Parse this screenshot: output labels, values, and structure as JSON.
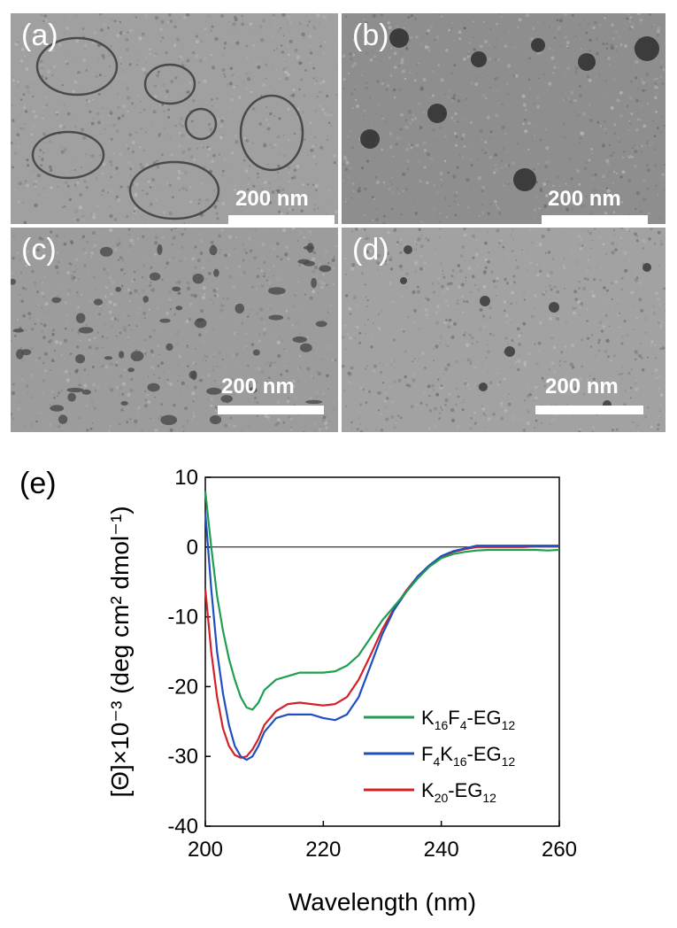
{
  "micrographs": [
    {
      "label": "(a)",
      "scale_text": "200 nm",
      "tone": "#a0a0a0"
    },
    {
      "label": "(b)",
      "scale_text": "200 nm",
      "tone": "#8e8e8e"
    },
    {
      "label": "(c)",
      "scale_text": "200 nm",
      "tone": "#9c9c9c"
    },
    {
      "label": "(d)",
      "scale_text": "200 nm",
      "tone": "#a2a2a2"
    }
  ],
  "chart_label": "(e)",
  "chart_data": {
    "type": "line",
    "xlabel": "Wavelength (nm)",
    "ylabel": "[Θ]×10⁻³ (deg cm² dmol⁻¹)",
    "xlim": [
      200,
      260
    ],
    "ylim": [
      -40,
      10
    ],
    "xticks": [
      200,
      220,
      240,
      260
    ],
    "yticks": [
      10,
      0,
      -10,
      -20,
      -30,
      -40
    ],
    "grid": false,
    "legend_position": "bottom-right",
    "series": [
      {
        "name": "K16F4-EG12",
        "name_parts": [
          [
            "K",
            false
          ],
          [
            "16",
            true
          ],
          [
            "F",
            false
          ],
          [
            "4",
            true
          ],
          [
            "-EG",
            false
          ],
          [
            "12",
            true
          ]
        ],
        "color": "#1f9e4f",
        "x": [
          200,
          201,
          202,
          203,
          204,
          205,
          206,
          207,
          208,
          209,
          210,
          212,
          214,
          216,
          218,
          220,
          222,
          224,
          226,
          228,
          230,
          232,
          234,
          236,
          238,
          240,
          242,
          244,
          246,
          248,
          250,
          252,
          254,
          256,
          258,
          260
        ],
        "y": [
          8,
          0,
          -7,
          -12,
          -16,
          -19,
          -21.5,
          -23,
          -23.3,
          -22.3,
          -20.5,
          -19,
          -18.5,
          -18,
          -18,
          -18,
          -17.8,
          -17,
          -15.5,
          -13,
          -10.5,
          -8.5,
          -6.5,
          -4.5,
          -2.8,
          -1.6,
          -1,
          -0.7,
          -0.5,
          -0.4,
          -0.4,
          -0.4,
          -0.4,
          -0.4,
          -0.5,
          -0.4
        ]
      },
      {
        "name": "F4K16-EG12",
        "name_parts": [
          [
            "F",
            false
          ],
          [
            "4",
            true
          ],
          [
            "K",
            false
          ],
          [
            "16",
            true
          ],
          [
            "-EG",
            false
          ],
          [
            "12",
            true
          ]
        ],
        "color": "#1f4fbf",
        "x": [
          200,
          201,
          202,
          203,
          204,
          205,
          206,
          207,
          208,
          209,
          210,
          212,
          214,
          216,
          218,
          220,
          222,
          224,
          226,
          228,
          230,
          232,
          234,
          236,
          238,
          240,
          242,
          244,
          246,
          248,
          250,
          252,
          254,
          256,
          258,
          260
        ],
        "y": [
          5,
          -6,
          -15,
          -21,
          -25.5,
          -28.5,
          -30,
          -30.5,
          -30,
          -28.5,
          -26.5,
          -24.5,
          -24,
          -24,
          -24,
          -24.5,
          -24.8,
          -24,
          -21.5,
          -17,
          -12.5,
          -9,
          -6.5,
          -4.2,
          -2.6,
          -1.3,
          -0.6,
          -0.2,
          0.2,
          0.2,
          0.2,
          0.2,
          0.2,
          0.2,
          0.2,
          0.2
        ]
      },
      {
        "name": "K20-EG12",
        "name_parts": [
          [
            "K",
            false
          ],
          [
            "20",
            true
          ],
          [
            "-EG",
            false
          ],
          [
            "12",
            true
          ]
        ],
        "color": "#d42027",
        "x": [
          200,
          201,
          202,
          203,
          204,
          205,
          206,
          207,
          208,
          209,
          210,
          212,
          214,
          216,
          218,
          220,
          222,
          224,
          226,
          228,
          230,
          232,
          234,
          236,
          238,
          240,
          242,
          244,
          246,
          248,
          250,
          252,
          254,
          256,
          258,
          260
        ],
        "y": [
          -6,
          -15,
          -21.5,
          -26,
          -28.5,
          -29.8,
          -30.2,
          -30,
          -29,
          -27.5,
          -25.5,
          -23.5,
          -22.5,
          -22.3,
          -22.5,
          -22.7,
          -22.5,
          -21.5,
          -19,
          -15.5,
          -11.8,
          -8.8,
          -6.3,
          -4.2,
          -2.6,
          -1.4,
          -0.7,
          -0.3,
          0,
          0,
          0,
          0,
          0,
          0.1,
          0.1,
          0.1
        ]
      }
    ]
  }
}
